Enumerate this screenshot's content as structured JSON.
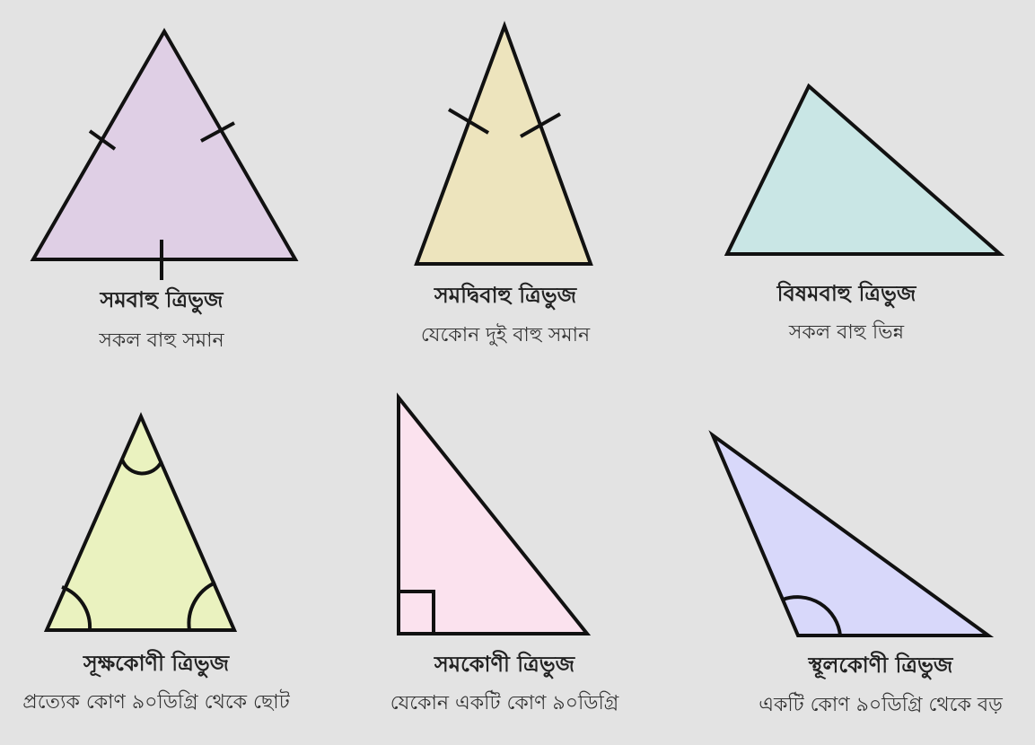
{
  "colors": {
    "background": "#e3e3e3",
    "stroke": "#111111",
    "equilateral_fill": "#dfcfe5",
    "isosceles_fill": "#ede4bd",
    "scalene_fill": "#c9e6e5",
    "acute_fill": "#eaf2bf",
    "right_fill": "#fbe2ee",
    "obtuse_fill": "#d8d8fa"
  },
  "triangles": [
    {
      "id": "equilateral",
      "title": "সমবাহু ত্রিভুজ",
      "description": "সকল বাহু সমান"
    },
    {
      "id": "isosceles",
      "title": "সমদ্বিবাহু ত্রিভুজ",
      "description": "যেকোন দুই বাহু সমান"
    },
    {
      "id": "scalene",
      "title": "বিষমবাহু ত্রিভুজ",
      "description": "সকল বাহু ভিন্ন"
    },
    {
      "id": "acute",
      "title": "সূক্ষকোণী ত্রিভুজ",
      "description": "প্রত্যেক কোণ ৯০ডিগ্রি থেকে ছোট"
    },
    {
      "id": "right",
      "title": "সমকোণী ত্রিভুজ",
      "description": "যেকোন একটি কোণ ৯০ডিগ্রি"
    },
    {
      "id": "obtuse",
      "title": "স্থূলকোণী ত্রিভুজ",
      "description": "একটি কোণ ৯০ডিগ্রি থেকে বড়"
    }
  ]
}
